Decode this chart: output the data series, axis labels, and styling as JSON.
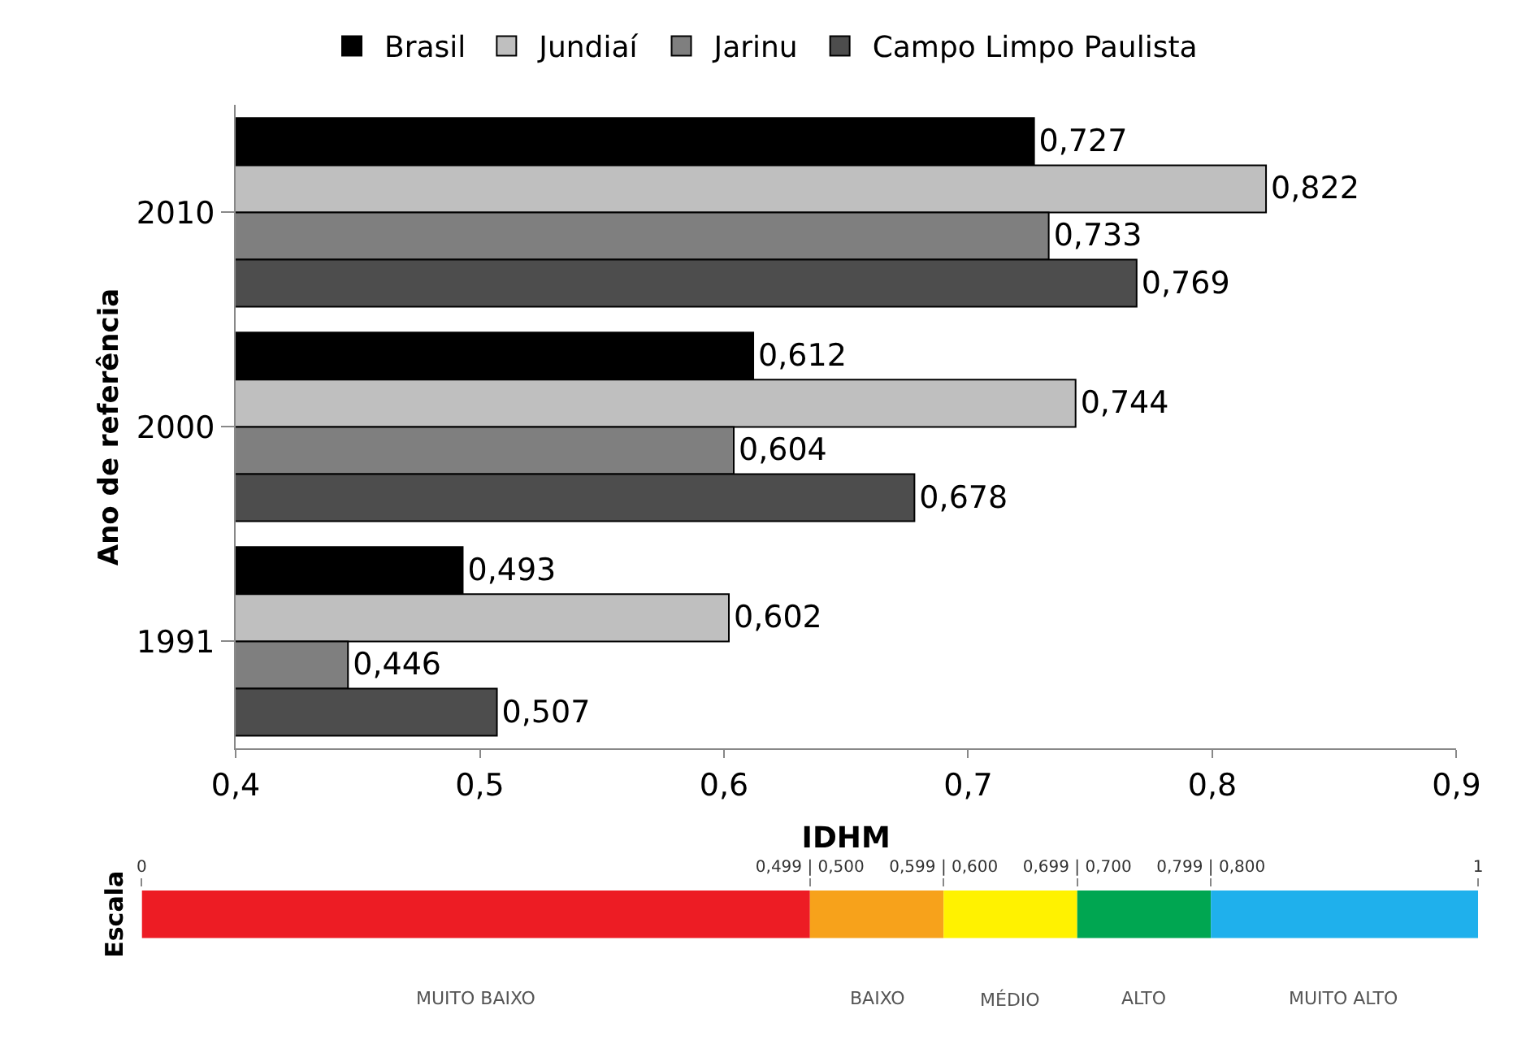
{
  "chart_data": [
    {
      "type": "bar",
      "orientation": "horizontal",
      "categories": [
        "2010",
        "2000",
        "1991"
      ],
      "xlabel": "IDHM",
      "ylabel": "Ano de referência",
      "xlim": [
        0.4,
        0.9
      ],
      "xticks": [
        {
          "value": 0.4,
          "label": "0,4"
        },
        {
          "value": 0.5,
          "label": "0,5"
        },
        {
          "value": 0.6,
          "label": "0,6"
        },
        {
          "value": 0.7,
          "label": "0,7"
        },
        {
          "value": 0.8,
          "label": "0,8"
        },
        {
          "value": 0.9,
          "label": "0,9"
        }
      ],
      "legend": "top",
      "series": [
        {
          "name": "Brasil",
          "color": "#000000",
          "values": [
            0.727,
            0.612,
            0.493
          ],
          "value_labels": [
            "0,727",
            "0,612",
            "0,493"
          ]
        },
        {
          "name": "Jundiaí",
          "color": "#bfbfbf",
          "values": [
            0.822,
            0.744,
            0.602
          ],
          "value_labels": [
            "0,822",
            "0,744",
            "0,602"
          ]
        },
        {
          "name": "Jarinu",
          "color": "#7f7f7f",
          "values": [
            0.733,
            0.604,
            0.446
          ],
          "value_labels": [
            "0,733",
            "0,604",
            "0,446"
          ]
        },
        {
          "name": "Campo Limpo Paulista",
          "color": "#4d4d4d",
          "values": [
            0.769,
            0.678,
            0.507
          ],
          "value_labels": [
            "0,769",
            "0,678",
            "0,507"
          ]
        }
      ]
    },
    {
      "type": "bar",
      "orientation": "horizontal",
      "stacked": true,
      "categories": [
        null
      ],
      "ylabel": "Escala",
      "xlim": [
        0,
        1
      ],
      "xticks": [
        {
          "value": 0,
          "label": "0"
        },
        {
          "value": 0.5,
          "label": "0,499 | 0,500"
        },
        {
          "value": 0.6,
          "label": "0,599 | 0,600"
        },
        {
          "value": 0.7,
          "label": "0,699 | 0,700"
        },
        {
          "value": 0.8,
          "label": "0,799 | 0,800"
        },
        {
          "value": 1,
          "label": "1"
        }
      ],
      "legend": false,
      "series": [
        {
          "name": "MUITO BAIXO",
          "color": "#ed1c24",
          "values": [
            0.5
          ]
        },
        {
          "name": "BAIXO",
          "color": "#f7a21b",
          "values": [
            0.1
          ]
        },
        {
          "name": "MÉDIO",
          "color": "#fff200",
          "values": [
            0.1
          ]
        },
        {
          "name": "ALTO",
          "color": "#00a651",
          "values": [
            0.1
          ]
        },
        {
          "name": "MUITO ALTO",
          "color": "#1fb0ec",
          "values": [
            0.2
          ]
        }
      ]
    }
  ]
}
